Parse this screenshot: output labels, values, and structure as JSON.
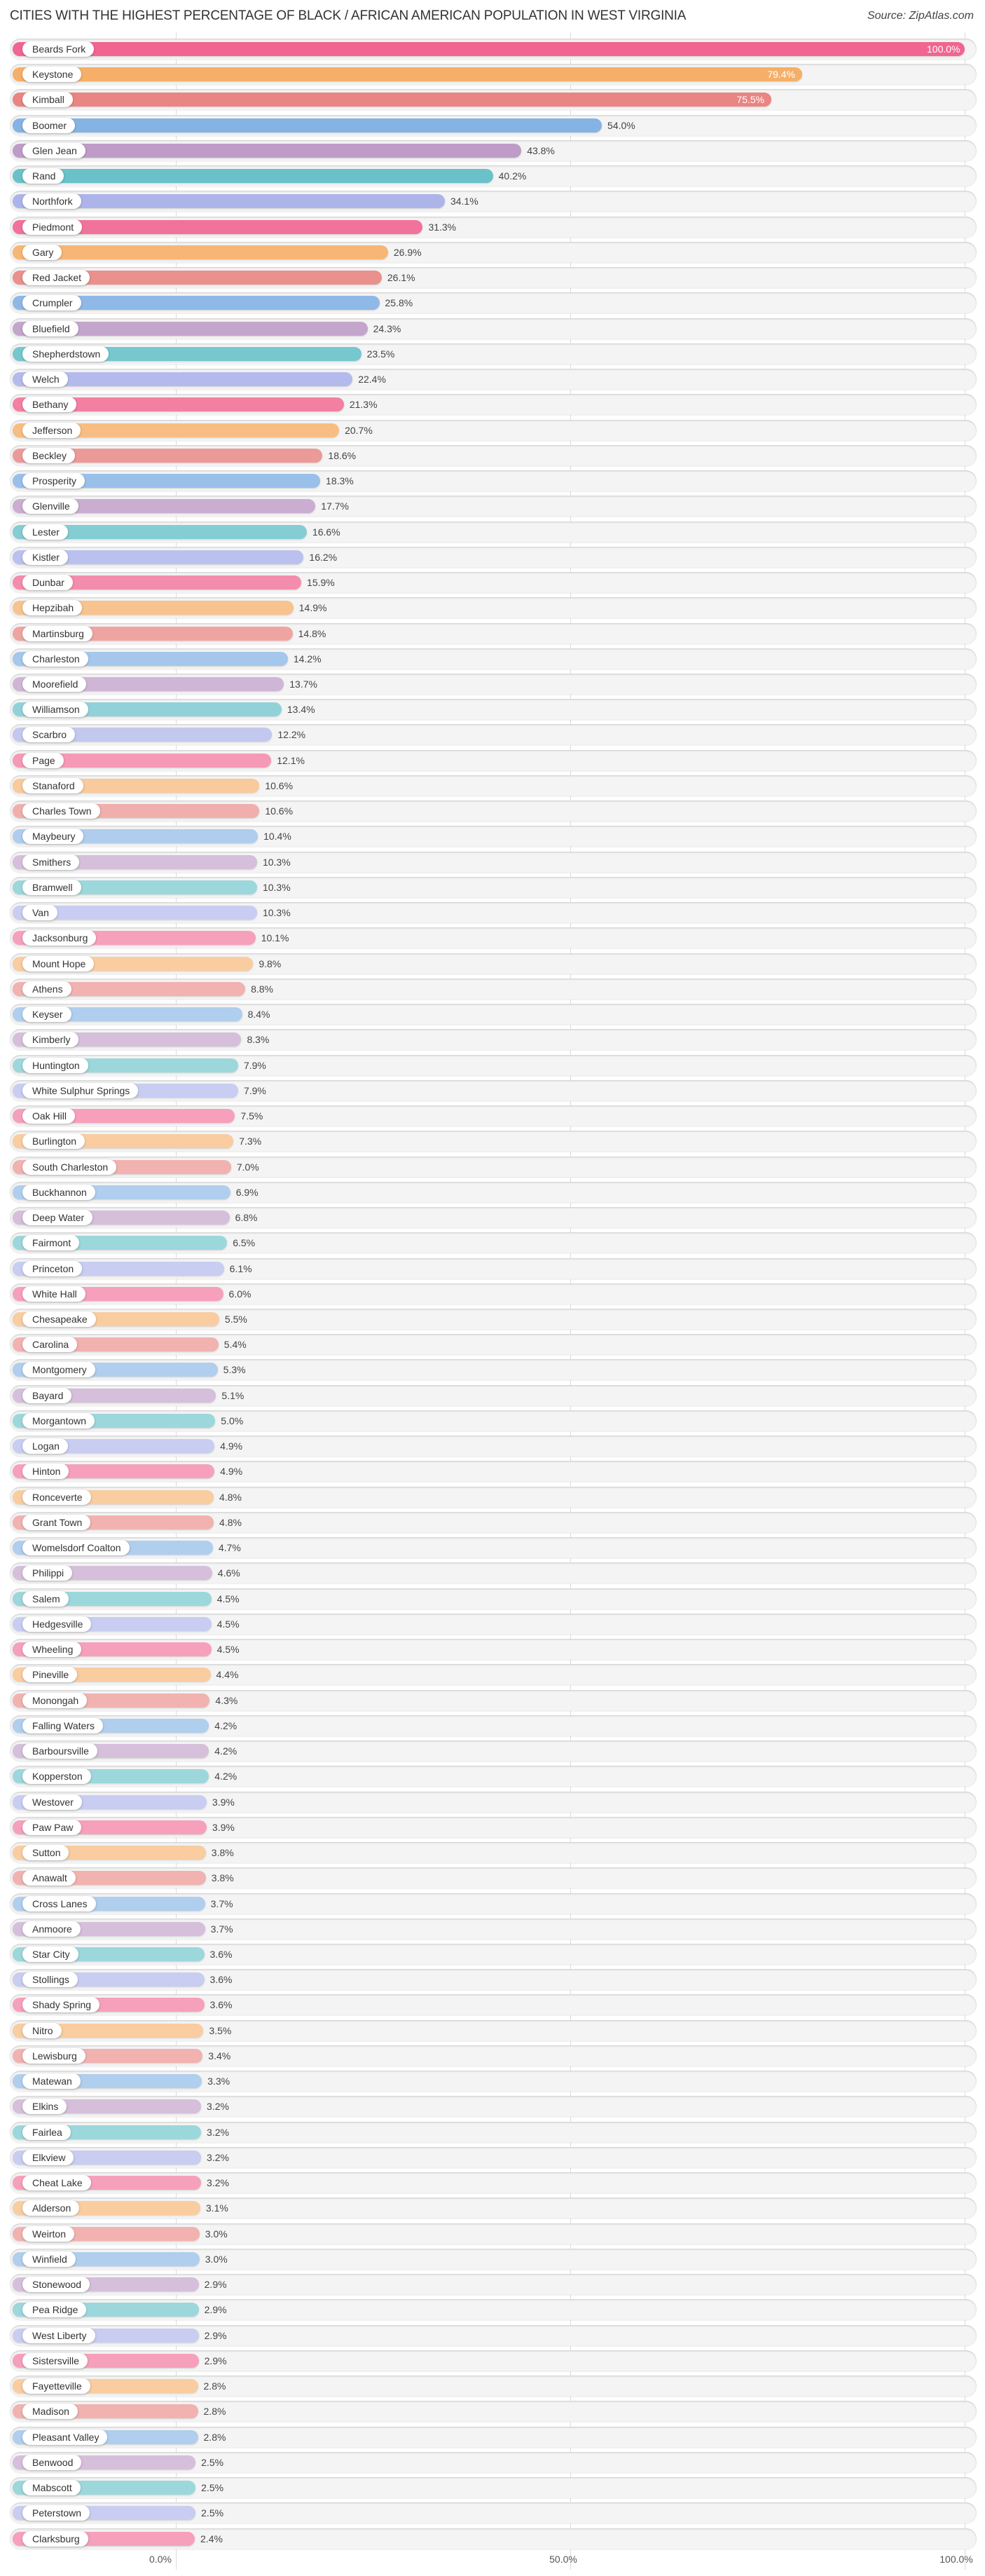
{
  "header": {
    "title": "CITIES WITH THE HIGHEST PERCENTAGE OF BLACK / AFRICAN AMERICAN POPULATION IN WEST VIRGINIA",
    "source": "Source: ZipAtlas.com"
  },
  "axis": {
    "ticks": [
      {
        "label": "0.0%",
        "value": 0
      },
      {
        "label": "50.0%",
        "value": 50
      },
      {
        "label": "100.0%",
        "value": 100
      }
    ]
  },
  "palette": [
    "#f06591",
    "#f6ae66",
    "#e8827f",
    "#7fb0e3",
    "#bb97c4",
    "#5fbec6",
    "#a6aee8"
  ],
  "chart_data": {
    "type": "bar",
    "orientation": "horizontal",
    "title": "Cities with the Highest Percentage of Black / African American Population in West Virginia",
    "source": "ZipAtlas.com",
    "xlabel": "",
    "ylabel": "",
    "xlim": [
      0,
      100
    ],
    "grid": true,
    "x_ticks": [
      "0.0%",
      "50.0%",
      "100.0%"
    ],
    "categories": [
      "Beards Fork",
      "Keystone",
      "Kimball",
      "Boomer",
      "Glen Jean",
      "Rand",
      "Northfork",
      "Piedmont",
      "Gary",
      "Red Jacket",
      "Crumpler",
      "Bluefield",
      "Shepherdstown",
      "Welch",
      "Bethany",
      "Jefferson",
      "Beckley",
      "Prosperity",
      "Glenville",
      "Lester",
      "Kistler",
      "Dunbar",
      "Hepzibah",
      "Martinsburg",
      "Charleston",
      "Moorefield",
      "Williamson",
      "Scarbro",
      "Page",
      "Stanaford",
      "Charles Town",
      "Maybeury",
      "Smithers",
      "Bramwell",
      "Van",
      "Jacksonburg",
      "Mount Hope",
      "Athens",
      "Keyser",
      "Kimberly",
      "Huntington",
      "White Sulphur Springs",
      "Oak Hill",
      "Burlington",
      "South Charleston",
      "Buckhannon",
      "Deep Water",
      "Fairmont",
      "Princeton",
      "White Hall",
      "Chesapeake",
      "Carolina",
      "Montgomery",
      "Bayard",
      "Morgantown",
      "Logan",
      "Hinton",
      "Ronceverte",
      "Grant Town",
      "Womelsdorf Coalton",
      "Philippi",
      "Salem",
      "Hedgesville",
      "Wheeling",
      "Pineville",
      "Monongah",
      "Falling Waters",
      "Barboursville",
      "Kopperston",
      "Westover",
      "Paw Paw",
      "Sutton",
      "Anawalt",
      "Cross Lanes",
      "Anmoore",
      "Star City",
      "Stollings",
      "Shady Spring",
      "Nitro",
      "Lewisburg",
      "Matewan",
      "Elkins",
      "Fairlea",
      "Elkview",
      "Cheat Lake",
      "Alderson",
      "Weirton",
      "Winfield",
      "Stonewood",
      "Pea Ridge",
      "West Liberty",
      "Sistersville",
      "Fayetteville",
      "Madison",
      "Pleasant Valley",
      "Benwood",
      "Mabscott",
      "Peterstown",
      "Clarksburg"
    ],
    "values": [
      100.0,
      79.4,
      75.5,
      54.0,
      43.8,
      40.2,
      34.1,
      31.3,
      26.9,
      26.1,
      25.8,
      24.3,
      23.5,
      22.4,
      21.3,
      20.7,
      18.6,
      18.3,
      17.7,
      16.6,
      16.2,
      15.9,
      14.9,
      14.8,
      14.2,
      13.7,
      13.4,
      12.2,
      12.1,
      10.6,
      10.6,
      10.4,
      10.3,
      10.3,
      10.3,
      10.1,
      9.8,
      8.8,
      8.4,
      8.3,
      7.9,
      7.9,
      7.5,
      7.3,
      7.0,
      6.9,
      6.8,
      6.5,
      6.1,
      6.0,
      5.5,
      5.4,
      5.3,
      5.1,
      5.0,
      4.9,
      4.9,
      4.8,
      4.8,
      4.7,
      4.6,
      4.5,
      4.5,
      4.5,
      4.4,
      4.3,
      4.2,
      4.2,
      4.2,
      3.9,
      3.9,
      3.8,
      3.8,
      3.7,
      3.7,
      3.6,
      3.6,
      3.6,
      3.5,
      3.4,
      3.3,
      3.2,
      3.2,
      3.2,
      3.2,
      3.1,
      3.0,
      3.0,
      2.9,
      2.9,
      2.9,
      2.9,
      2.8,
      2.8,
      2.8,
      2.5,
      2.5,
      2.5,
      2.4
    ],
    "value_labels": [
      "100.0%",
      "79.4%",
      "75.5%",
      "54.0%",
      "43.8%",
      "40.2%",
      "34.1%",
      "31.3%",
      "26.9%",
      "26.1%",
      "25.8%",
      "24.3%",
      "23.5%",
      "22.4%",
      "21.3%",
      "20.7%",
      "18.6%",
      "18.3%",
      "17.7%",
      "16.6%",
      "16.2%",
      "15.9%",
      "14.9%",
      "14.8%",
      "14.2%",
      "13.7%",
      "13.4%",
      "12.2%",
      "12.1%",
      "10.6%",
      "10.6%",
      "10.4%",
      "10.3%",
      "10.3%",
      "10.3%",
      "10.1%",
      "9.8%",
      "8.8%",
      "8.4%",
      "8.3%",
      "7.9%",
      "7.9%",
      "7.5%",
      "7.3%",
      "7.0%",
      "6.9%",
      "6.8%",
      "6.5%",
      "6.1%",
      "6.0%",
      "5.5%",
      "5.4%",
      "5.3%",
      "5.1%",
      "5.0%",
      "4.9%",
      "4.9%",
      "4.8%",
      "4.8%",
      "4.7%",
      "4.6%",
      "4.5%",
      "4.5%",
      "4.5%",
      "4.4%",
      "4.3%",
      "4.2%",
      "4.2%",
      "4.2%",
      "3.9%",
      "3.9%",
      "3.8%",
      "3.8%",
      "3.7%",
      "3.7%",
      "3.6%",
      "3.6%",
      "3.6%",
      "3.5%",
      "3.4%",
      "3.3%",
      "3.2%",
      "3.2%",
      "3.2%",
      "3.2%",
      "3.1%",
      "3.0%",
      "3.0%",
      "2.9%",
      "2.9%",
      "2.9%",
      "2.9%",
      "2.8%",
      "2.8%",
      "2.8%",
      "2.5%",
      "2.5%",
      "2.5%",
      "2.4%"
    ]
  }
}
